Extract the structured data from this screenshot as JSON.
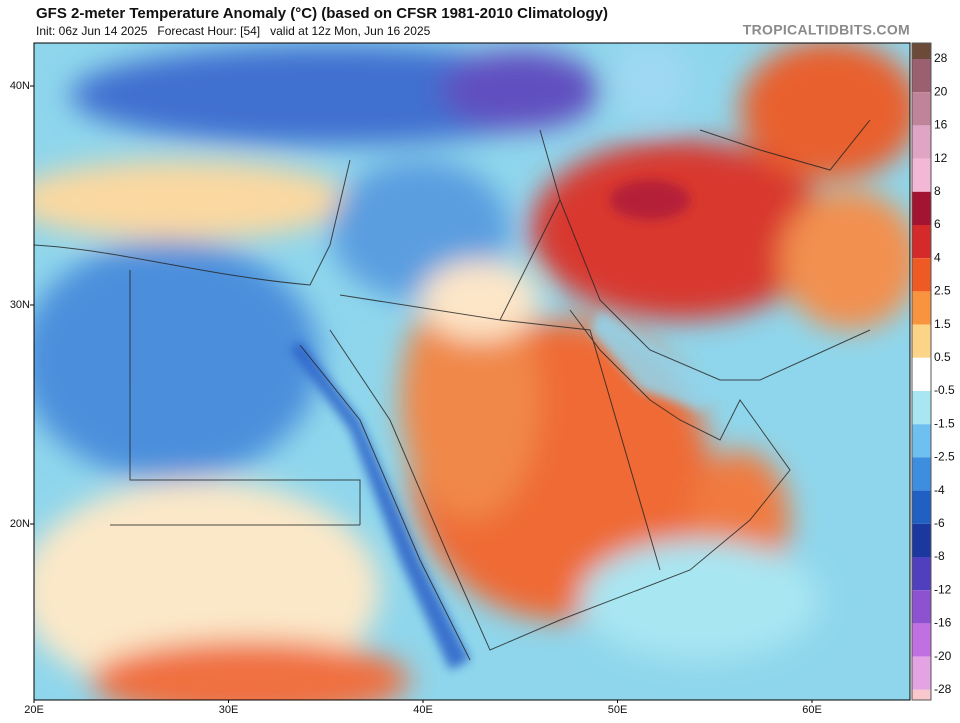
{
  "header": {
    "title": "GFS 2-meter Temperature Anomaly (°C) (based on CFSR 1981-2010 Climatology)",
    "subtitle": "Init: 06z Jun 14 2025   Forecast Hour: [54]   valid at 12z Mon, Jun 16 2025",
    "site": "TROPICALTIDBITS.COM"
  },
  "map": {
    "lat_labels": [
      "40N",
      "30N",
      "20N"
    ],
    "lon_labels": [
      "20E",
      "30E",
      "40E",
      "50E",
      "60E"
    ]
  },
  "colorbar": {
    "labels": [
      "28",
      "20",
      "16",
      "12",
      "8",
      "6",
      "4",
      "2.5",
      "1.5",
      "0.5",
      "-0.5",
      "-1.5",
      "-2.5",
      "-4",
      "-6",
      "-8",
      "-12",
      "-16",
      "-20",
      "-28"
    ],
    "colors": [
      "#6b4a3a",
      "#9a6070",
      "#c0849a",
      "#e0a4c4",
      "#f2b8d6",
      "#a31432",
      "#d42a2a",
      "#ef5a24",
      "#f8943e",
      "#fcd488",
      "#ffffff",
      "#a8e6f2",
      "#6ec0f0",
      "#3e8ee0",
      "#1f60c2",
      "#1a389e",
      "#5040be",
      "#8c52d0",
      "#c070e0",
      "#e4a4e4",
      "#f8c8cc"
    ]
  }
}
